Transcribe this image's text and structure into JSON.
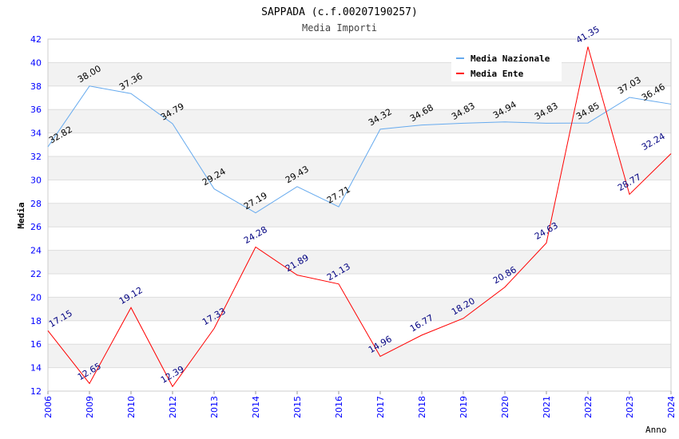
{
  "chart_data": {
    "type": "line",
    "title": "SAPPADA (c.f.00207190257)",
    "subtitle": "Media Importi",
    "xlabel": "Anno",
    "ylabel": "Media",
    "ylim": [
      12,
      42
    ],
    "yticks": [
      12,
      14,
      16,
      18,
      20,
      22,
      24,
      26,
      28,
      30,
      32,
      34,
      36,
      38,
      40,
      42
    ],
    "categories": [
      "2006",
      "2009",
      "2010",
      "2012",
      "2013",
      "2014",
      "2015",
      "2016",
      "2017",
      "2018",
      "2019",
      "2020",
      "2021",
      "2022",
      "2023",
      "2024"
    ],
    "legend_position": "top-right",
    "series": [
      {
        "name": "Media Nazionale",
        "color": "#66aaee",
        "label_color": "#000000",
        "values": [
          32.82,
          38.0,
          37.36,
          34.79,
          29.24,
          27.19,
          29.43,
          27.71,
          34.32,
          34.68,
          34.83,
          34.94,
          34.83,
          34.85,
          37.03,
          36.46
        ]
      },
      {
        "name": "Media Ente",
        "color": "#ff0000",
        "label_color": "#000080",
        "values": [
          17.15,
          12.65,
          19.12,
          12.39,
          17.33,
          24.28,
          21.89,
          21.13,
          14.96,
          16.77,
          18.2,
          20.86,
          24.63,
          41.35,
          28.77,
          32.24
        ]
      }
    ]
  }
}
